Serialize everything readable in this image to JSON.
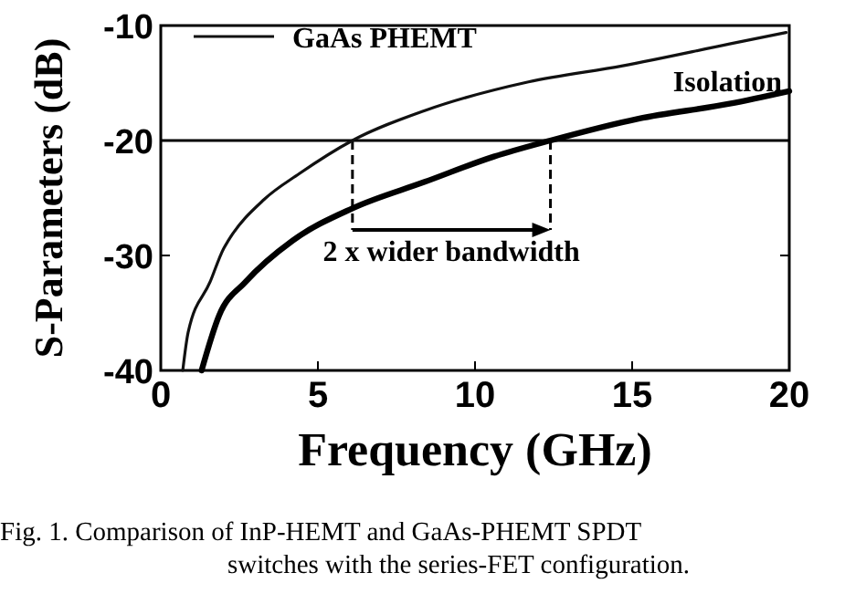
{
  "chart_data": {
    "type": "line",
    "xlabel": "Frequency (GHz)",
    "ylabel": "S-Parameters (dB)",
    "xlim": [
      0,
      20
    ],
    "ylim": [
      -40,
      -10
    ],
    "xticks": [
      0,
      5,
      10,
      15,
      20
    ],
    "yticks": [
      -40,
      -30,
      -20,
      -10
    ],
    "legend": "top left",
    "grid": false,
    "line_style": "solid",
    "marker": "none",
    "series": [
      {
        "name": "GaAs PHEMT",
        "color": "#111111",
        "x": [
          0.7,
          0.87,
          1.57,
          2.0,
          2.15,
          3.3,
          4.4,
          6.1,
          8.4,
          11.7,
          14.7,
          18.1,
          19.9
        ],
        "values": [
          -40,
          -36.7,
          -32.3,
          -29.4,
          -28.7,
          -25.1,
          -22.9,
          -20,
          -17.4,
          -14.9,
          -13.5,
          -11.6,
          -10.6
        ]
      },
      {
        "color": "#000000",
        "x": [
          1.3,
          1.86,
          2.7,
          4.2,
          6.1,
          8.4,
          10.6,
          12.4,
          15.2,
          18.1,
          20
        ],
        "values": [
          -40,
          -35.2,
          -32.3,
          -28.7,
          -25.9,
          -23.6,
          -21.4,
          -20,
          -18.1,
          -16.8,
          -15.7
        ]
      }
    ],
    "ref_lines": [
      {
        "axis": "y",
        "value": -20
      }
    ],
    "annotations": [
      "Isolation",
      {
        "text": "2 x wider bandwidth",
        "x": 12.4,
        "y": -20
      },
      "Fig. 1.   Comparison of InP-HEMT and GaAs-PHEMT SPDT",
      "switches with the series-FET configuration."
    ]
  }
}
